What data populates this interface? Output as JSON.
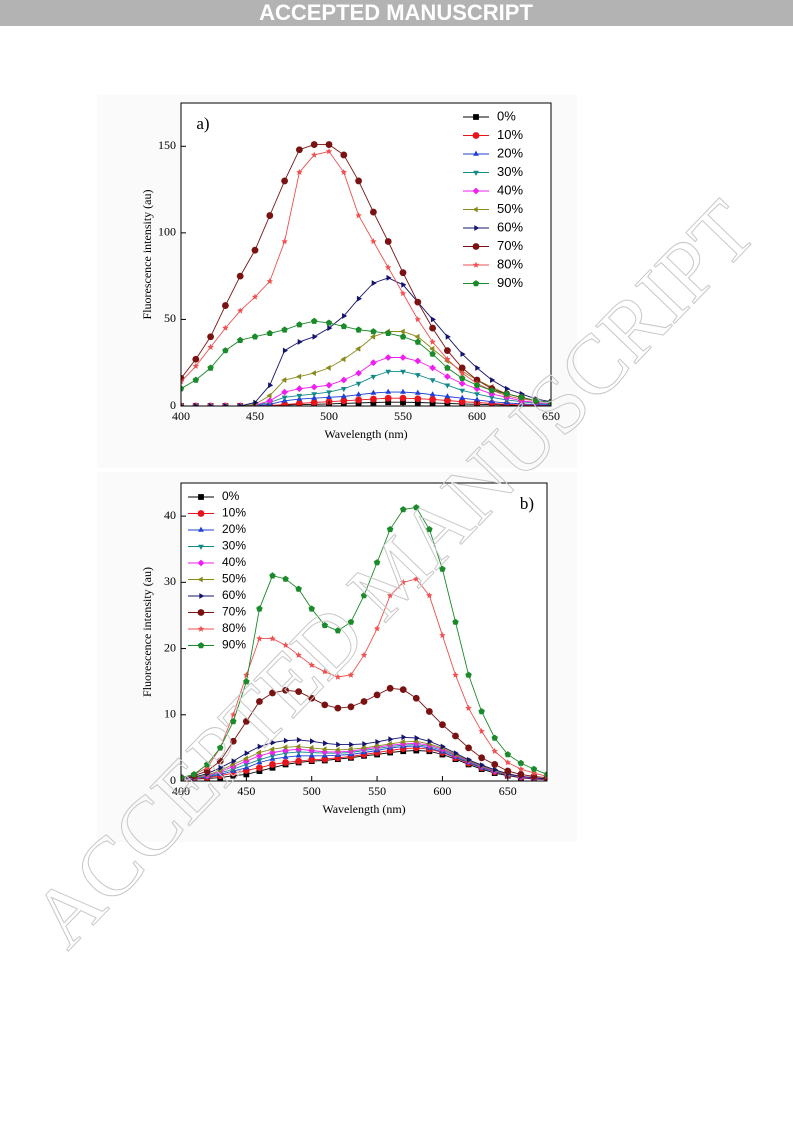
{
  "header": {
    "title": "ACCEPTED MANUSCRIPT"
  },
  "watermark": "ACCEPTED MANUSCRIPT",
  "chart_data": [
    {
      "type": "line",
      "annotation": "a)",
      "x_label": "Wavelength (nm)",
      "y_label": "Fluorescence intensity (au)",
      "xlim": [
        400,
        650
      ],
      "ylim": [
        0,
        175
      ],
      "xticks": [
        400,
        450,
        500,
        550,
        600,
        650
      ],
      "yticks": [
        0,
        50,
        100,
        150
      ],
      "legend": "upper right",
      "x": [
        400,
        410,
        420,
        430,
        440,
        450,
        460,
        470,
        480,
        490,
        500,
        510,
        520,
        530,
        540,
        550,
        560,
        570,
        580,
        590,
        600,
        610,
        620,
        630,
        640,
        650
      ],
      "series": [
        {
          "name": "0%",
          "color": "#000000",
          "marker": "square",
          "values": [
            0,
            0,
            0,
            0,
            0,
            0,
            0.2,
            0.5,
            0.8,
            1,
            1.2,
            1.5,
            1.8,
            2,
            2.2,
            2.2,
            2,
            1.8,
            1.5,
            1.2,
            1,
            0.8,
            0.5,
            0.3,
            0.2,
            0.1
          ]
        },
        {
          "name": "10%",
          "color": "#e8141c",
          "marker": "circle",
          "values": [
            0,
            0,
            0,
            0,
            0,
            0,
            0.3,
            0.8,
            1.5,
            2,
            2.5,
            3,
            3.5,
            4,
            4.5,
            4.5,
            4.2,
            3.8,
            3.2,
            2.5,
            2,
            1.5,
            1,
            0.6,
            0.4,
            0.2
          ]
        },
        {
          "name": "20%",
          "color": "#1f3fd6",
          "marker": "triangle-up",
          "values": [
            0,
            0,
            0,
            0,
            0,
            0.2,
            1,
            3,
            4,
            4.5,
            5,
            5.5,
            6.5,
            7.5,
            8,
            8,
            7.5,
            6.5,
            5.5,
            4.5,
            3.5,
            2.5,
            1.8,
            1.2,
            0.8,
            0.5
          ]
        },
        {
          "name": "30%",
          "color": "#138a8a",
          "marker": "triangle-down",
          "values": [
            0,
            0,
            0,
            0,
            0,
            0.3,
            2,
            5,
            6,
            7,
            8,
            10,
            13,
            17,
            20,
            20,
            18,
            15,
            12,
            9,
            7,
            5,
            3.5,
            2.5,
            1.5,
            1
          ]
        },
        {
          "name": "40%",
          "color": "#f01ff0",
          "marker": "diamond",
          "values": [
            0,
            0,
            0,
            0,
            0,
            0.5,
            3,
            8,
            10,
            11,
            12,
            15,
            19,
            25,
            28,
            28,
            26,
            22,
            17,
            13,
            10,
            7,
            5,
            3,
            2,
            1.2
          ]
        },
        {
          "name": "50%",
          "color": "#8a8a1c",
          "marker": "triangle-left",
          "values": [
            0,
            0,
            0,
            0,
            0,
            1,
            6,
            15,
            17,
            19,
            22,
            27,
            33,
            40,
            43,
            43,
            40,
            33,
            26,
            20,
            15,
            11,
            7,
            5,
            3,
            2
          ]
        },
        {
          "name": "60%",
          "color": "#14146e",
          "marker": "triangle-right",
          "values": [
            0,
            0,
            0,
            0,
            0,
            2,
            12,
            32,
            37,
            40,
            45,
            52,
            62,
            71,
            74,
            70,
            60,
            50,
            40,
            30,
            22,
            15,
            10,
            7,
            4,
            2.5
          ]
        },
        {
          "name": "70%",
          "color": "#7a1212",
          "marker": "circle",
          "values": [
            16,
            27,
            40,
            58,
            75,
            90,
            110,
            130,
            148,
            151,
            151,
            145,
            130,
            112,
            95,
            77,
            60,
            45,
            32,
            22,
            15,
            10,
            7,
            5,
            3,
            2
          ]
        },
        {
          "name": "80%",
          "color": "#f05050",
          "marker": "star",
          "values": [
            14,
            23,
            34,
            45,
            55,
            63,
            72,
            95,
            135,
            145,
            147,
            135,
            110,
            95,
            80,
            65,
            50,
            37,
            27,
            19,
            13,
            9,
            6,
            4,
            3,
            2
          ]
        },
        {
          "name": "90%",
          "color": "#1a8a2a",
          "marker": "pentagon",
          "values": [
            10,
            15,
            22,
            32,
            38,
            40,
            42,
            44,
            47,
            49,
            48,
            46,
            44,
            43,
            42,
            40,
            37,
            30,
            22,
            16,
            12,
            9,
            7,
            5,
            3,
            2
          ]
        }
      ]
    },
    {
      "type": "line",
      "annotation": "b)",
      "x_label": "Wavelength (nm)",
      "y_label": "Fluorescence intensity (au)",
      "xlim": [
        400,
        680
      ],
      "ylim": [
        0,
        45
      ],
      "xticks": [
        400,
        450,
        500,
        550,
        600,
        650
      ],
      "yticks": [
        0,
        10,
        20,
        30,
        40
      ],
      "legend": "upper left",
      "x": [
        400,
        410,
        420,
        430,
        440,
        450,
        460,
        470,
        480,
        490,
        500,
        510,
        520,
        530,
        540,
        550,
        560,
        570,
        580,
        590,
        600,
        610,
        620,
        630,
        640,
        650,
        660,
        670,
        680
      ],
      "series": [
        {
          "name": "0%",
          "color": "#000000",
          "marker": "square",
          "values": [
            0.3,
            0.3,
            0.4,
            0.5,
            0.8,
            1,
            1.5,
            2,
            2.5,
            2.8,
            3,
            3.1,
            3.3,
            3.5,
            3.8,
            4,
            4.3,
            4.5,
            4.6,
            4.5,
            4,
            3.3,
            2.5,
            1.8,
            1.2,
            0.8,
            0.5,
            0.3,
            0.2
          ]
        },
        {
          "name": "10%",
          "color": "#e8141c",
          "marker": "circle",
          "values": [
            0.3,
            0.3,
            0.5,
            0.8,
            1.2,
            1.6,
            2,
            2.5,
            2.8,
            3,
            3.2,
            3.3,
            3.5,
            3.7,
            4,
            4.3,
            4.6,
            4.9,
            5,
            4.8,
            4.3,
            3.5,
            2.7,
            2,
            1.4,
            0.9,
            0.6,
            0.4,
            0.2
          ]
        },
        {
          "name": "20%",
          "color": "#1f3fd6",
          "marker": "triangle-up",
          "values": [
            0.3,
            0.4,
            0.6,
            1,
            1.5,
            2,
            2.8,
            3.3,
            3.6,
            3.8,
            3.8,
            3.8,
            3.9,
            4,
            4.3,
            4.6,
            5,
            5.2,
            5.3,
            5,
            4.4,
            3.6,
            2.8,
            2,
            1.4,
            0.9,
            0.6,
            0.4,
            0.3
          ]
        },
        {
          "name": "30%",
          "color": "#138a8a",
          "marker": "triangle-down",
          "values": [
            0.3,
            0.4,
            0.7,
            1.2,
            1.8,
            2.5,
            3.2,
            3.8,
            4.2,
            4.4,
            4.3,
            4.2,
            4.2,
            4.3,
            4.6,
            4.9,
            5.2,
            5.4,
            5.5,
            5.2,
            4.6,
            3.8,
            2.9,
            2.1,
            1.5,
            1,
            0.6,
            0.4,
            0.3
          ]
        },
        {
          "name": "40%",
          "color": "#f01ff0",
          "marker": "diamond",
          "values": [
            0.3,
            0.5,
            0.8,
            1.4,
            2.2,
            3,
            3.8,
            4.3,
            4.6,
            4.8,
            4.6,
            4.4,
            4.4,
            4.5,
            4.8,
            5.1,
            5.4,
            5.6,
            5.7,
            5.4,
            4.8,
            3.9,
            3,
            2.2,
            1.5,
            1,
            0.6,
            0.4,
            0.3
          ]
        },
        {
          "name": "50%",
          "color": "#8a8a1c",
          "marker": "triangle-left",
          "values": [
            0.4,
            0.5,
            0.9,
            1.6,
            2.5,
            3.4,
            4.3,
            4.8,
            5.1,
            5.2,
            5,
            4.8,
            4.7,
            4.8,
            5,
            5.3,
            5.6,
            5.9,
            6,
            5.6,
            5,
            4,
            3.1,
            2.3,
            1.6,
            1,
            0.7,
            0.5,
            0.3
          ]
        },
        {
          "name": "60%",
          "color": "#14146e",
          "marker": "triangle-right",
          "values": [
            0.4,
            0.6,
            1.1,
            2,
            3,
            4.2,
            5.2,
            5.8,
            6.1,
            6.2,
            6,
            5.7,
            5.5,
            5.5,
            5.6,
            5.9,
            6.3,
            6.6,
            6.5,
            6,
            5.2,
            4.2,
            3.2,
            2.4,
            1.7,
            1.1,
            0.7,
            0.5,
            0.3
          ]
        },
        {
          "name": "70%",
          "color": "#7a1212",
          "marker": "circle",
          "values": [
            0.5,
            0.8,
            1.5,
            3,
            6,
            9,
            12,
            13.3,
            13.7,
            13.5,
            12.5,
            11.5,
            11,
            11.2,
            12,
            13,
            14,
            13.8,
            12.5,
            10.5,
            8.5,
            6.8,
            5,
            3.5,
            2.5,
            1.5,
            1,
            0.7,
            0.5
          ]
        },
        {
          "name": "80%",
          "color": "#f05050",
          "marker": "star",
          "values": [
            0.5,
            1,
            2,
            5,
            10,
            16,
            21.5,
            21.5,
            20.5,
            19,
            17.5,
            16.5,
            15.7,
            16,
            19,
            23,
            28,
            30,
            30.5,
            28,
            22,
            16,
            11,
            7.5,
            4.5,
            2.8,
            1.8,
            1.2,
            0.7
          ]
        },
        {
          "name": "90%",
          "color": "#1a8a2a",
          "marker": "pentagon",
          "values": [
            0.5,
            1,
            2.5,
            5,
            9,
            15,
            26,
            31,
            30.5,
            29,
            26,
            23.5,
            22.7,
            24,
            28,
            33,
            38,
            41,
            41.3,
            38,
            32,
            24,
            16,
            10.5,
            6.5,
            4,
            2.7,
            1.8,
            1
          ]
        }
      ]
    }
  ]
}
